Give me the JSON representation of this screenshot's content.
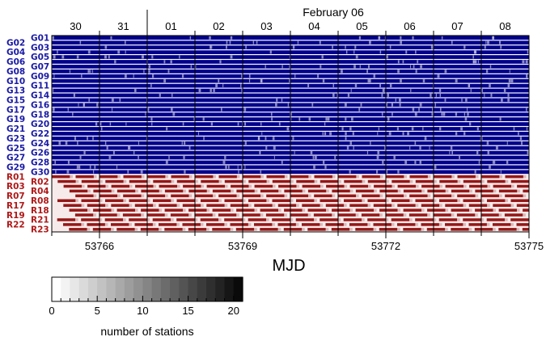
{
  "chart_data": {
    "type": "heatmap",
    "top_axis": {
      "title": "February 06",
      "tick_labels": [
        "30",
        "31",
        "01",
        "02",
        "03",
        "04",
        "05",
        "06",
        "07",
        "08"
      ]
    },
    "bottom_axis": {
      "label": "MJD",
      "tick_labels": [
        "53766",
        "53769",
        "53772",
        "53775"
      ],
      "tick_values": [
        53766,
        53769,
        53772,
        53775
      ],
      "range": [
        53765,
        53775
      ]
    },
    "gps_satellites": [
      "G01",
      "G02",
      "G03",
      "G04",
      "G05",
      "G06",
      "G07",
      "G08",
      "G09",
      "G10",
      "G11",
      "G13",
      "G14",
      "G15",
      "G16",
      "G17",
      "G18",
      "G19",
      "G20",
      "G21",
      "G22",
      "G23",
      "G24",
      "G25",
      "G26",
      "G27",
      "G28",
      "G29",
      "G30"
    ],
    "glonass_satellites": [
      "R01",
      "R02",
      "R03",
      "R04",
      "R07",
      "R08",
      "R17",
      "R18",
      "R19",
      "R21",
      "R22",
      "R23"
    ],
    "colorbar": {
      "label": "number of stations",
      "tick_labels": [
        "0",
        "5",
        "10",
        "15",
        "20"
      ],
      "tick_values": [
        0,
        5,
        10,
        15,
        20
      ],
      "range": [
        0,
        21
      ]
    },
    "colors": {
      "gps": "#00008b",
      "glonass": "#8b0000",
      "gps_label": "#1a1aa6",
      "glonass_label": "#b01818"
    }
  }
}
